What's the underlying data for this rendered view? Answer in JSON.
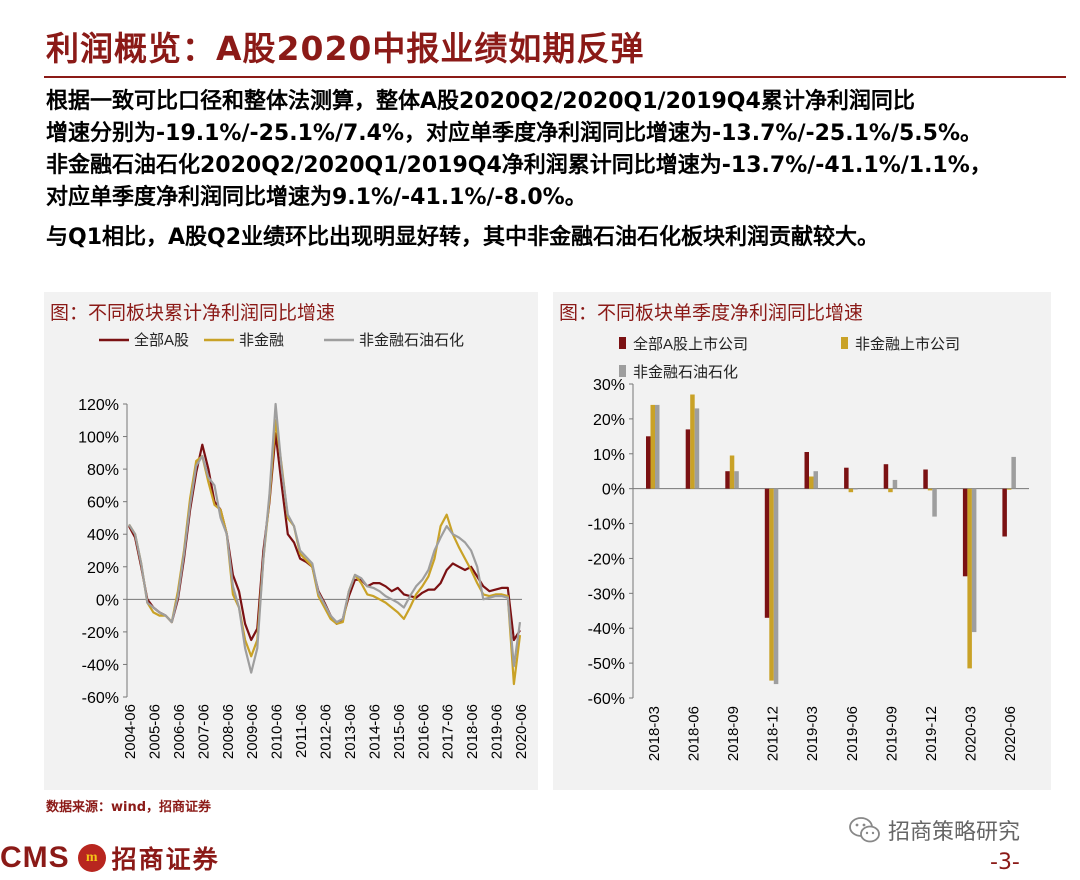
{
  "title": "利润概览：A股2020中报业绩如期反弹",
  "summary": [
    "根据一致可比口径和整体法测算，整体A股2020Q2/2020Q1/2019Q4累计净利润同比",
    "增速分别为-19.1%/-25.1%/7.4%，对应单季度净利润同比增速为-13.7%/-25.1%/5.5%。",
    "非金融石油石化2020Q2/2020Q1/2019Q4净利润累计同比增速为-13.7%/-41.1%/1.1%，",
    "对应单季度净利润同比增速为9.1%/-41.1%/-8.0%。",
    "与Q1相比，A股Q2业绩环比出现明显好转，其中非金融石油石化板块利润贡献较大。"
  ],
  "colors": {
    "series1": "#7b1113",
    "series2": "#c9a227",
    "series3": "#9e9e9e",
    "brand": "#8b1a17"
  },
  "left_panel": {
    "title": "图：不同板块累计净利润同比增速"
  },
  "right_panel": {
    "title": "图：不同板块单季度净利润同比增速"
  },
  "chart_data": [
    {
      "type": "line",
      "title": "图：不同板块累计净利润同比增速",
      "ylim": [
        -60,
        120
      ],
      "yticks": [
        120,
        100,
        80,
        60,
        40,
        20,
        0,
        -20,
        -40,
        -60
      ],
      "ytick_labels": [
        "120%",
        "100%",
        "80%",
        "60%",
        "40%",
        "20%",
        "0%",
        "-20%",
        "-40%",
        "-60%"
      ],
      "xtick_labels": [
        "2004-06",
        "2005-06",
        "2006-06",
        "2007-06",
        "2008-06",
        "2009-06",
        "2010-06",
        "2011-06",
        "2012-06",
        "2013-06",
        "2014-06",
        "2015-06",
        "2016-06",
        "2017-06",
        "2018-06",
        "2019-06",
        "2020-06"
      ],
      "x": [
        "2004-06",
        "2004-09",
        "2004-12",
        "2005-03",
        "2005-06",
        "2005-09",
        "2005-12",
        "2006-03",
        "2006-06",
        "2006-09",
        "2006-12",
        "2007-03",
        "2007-06",
        "2007-09",
        "2007-12",
        "2008-03",
        "2008-06",
        "2008-09",
        "2008-12",
        "2009-03",
        "2009-06",
        "2009-09",
        "2009-12",
        "2010-03",
        "2010-06",
        "2010-09",
        "2010-12",
        "2011-03",
        "2011-06",
        "2011-09",
        "2011-12",
        "2012-03",
        "2012-06",
        "2012-09",
        "2012-12",
        "2013-03",
        "2013-06",
        "2013-09",
        "2013-12",
        "2014-03",
        "2014-06",
        "2014-09",
        "2014-12",
        "2015-03",
        "2015-06",
        "2015-09",
        "2015-12",
        "2016-03",
        "2016-06",
        "2016-09",
        "2016-12",
        "2017-03",
        "2017-06",
        "2017-09",
        "2017-12",
        "2018-03",
        "2018-06",
        "2018-09",
        "2018-12",
        "2019-03",
        "2019-06",
        "2019-09",
        "2019-12",
        "2020-03",
        "2020-06"
      ],
      "legend": "top",
      "series": [
        {
          "name": "全部A股",
          "values": [
            45,
            38,
            20,
            0,
            -5,
            -8,
            -10,
            -14,
            0,
            25,
            55,
            78,
            95,
            80,
            60,
            55,
            40,
            15,
            5,
            -15,
            -25,
            -18,
            30,
            60,
            102,
            70,
            40,
            35,
            25,
            23,
            20,
            5,
            -2,
            -10,
            -15,
            -12,
            2,
            12,
            12,
            8,
            10,
            10,
            8,
            5,
            7,
            3,
            2,
            1,
            4,
            6,
            6,
            10,
            18,
            22,
            20,
            18,
            20,
            14,
            8,
            5,
            6,
            7,
            7,
            -25,
            -19
          ]
        },
        {
          "name": "非金融",
          "values": [
            46,
            40,
            22,
            -2,
            -8,
            -10,
            -10,
            -14,
            5,
            30,
            62,
            85,
            88,
            72,
            58,
            55,
            40,
            3,
            -5,
            -25,
            -35,
            -25,
            25,
            62,
            110,
            82,
            50,
            45,
            28,
            24,
            20,
            2,
            -5,
            -12,
            -15,
            -14,
            5,
            15,
            10,
            3,
            2,
            0,
            -2,
            -5,
            -8,
            -12,
            -5,
            3,
            8,
            14,
            25,
            45,
            52,
            40,
            32,
            25,
            18,
            10,
            3,
            2,
            3,
            3,
            2,
            -52,
            -22
          ]
        },
        {
          "name": "非金融石油石化",
          "values": [
            46,
            40,
            22,
            -2,
            -5,
            -8,
            -10,
            -14,
            2,
            28,
            58,
            82,
            88,
            75,
            70,
            50,
            40,
            8,
            -5,
            -30,
            -45,
            -30,
            25,
            65,
            120,
            80,
            52,
            45,
            30,
            26,
            22,
            4,
            -3,
            -10,
            -14,
            -12,
            5,
            15,
            13,
            8,
            7,
            5,
            2,
            0,
            -2,
            -5,
            2,
            8,
            12,
            18,
            30,
            38,
            45,
            40,
            38,
            35,
            30,
            20,
            0,
            1,
            2,
            2,
            1,
            -41,
            -14
          ]
        }
      ]
    },
    {
      "type": "bar",
      "title": "图：不同板块单季度净利润同比增速",
      "categories": [
        "2018-03",
        "2018-06",
        "2018-09",
        "2018-12",
        "2019-03",
        "2019-06",
        "2019-09",
        "2019-12",
        "2020-03",
        "2020-06"
      ],
      "ylim": [
        -60,
        30
      ],
      "yticks": [
        30,
        20,
        10,
        0,
        -10,
        -20,
        -30,
        -40,
        -50,
        -60
      ],
      "ytick_labels": [
        "30%",
        "20%",
        "10%",
        "0%",
        "-10%",
        "-20%",
        "-30%",
        "-40%",
        "-50%",
        "-60%"
      ],
      "legend": "top",
      "series": [
        {
          "name": "全部A股上市公司",
          "values": [
            15,
            17,
            5,
            -37,
            10.5,
            6,
            7,
            5.5,
            -25.1,
            -13.7
          ]
        },
        {
          "name": "非金融上市公司",
          "values": [
            24,
            27,
            9.5,
            -55,
            3.5,
            -1,
            -1,
            -0.5,
            -51.5,
            -0.3
          ]
        },
        {
          "name": "非金融石油石化",
          "values": [
            24,
            23,
            5,
            -56,
            5,
            0,
            2.5,
            -8.0,
            -41.1,
            9.1
          ]
        }
      ]
    }
  ],
  "source": "数据来源：wind，招商证券",
  "footer": {
    "logo_text": "CMS",
    "emblem_text": "m",
    "logo_cn": "招商证券",
    "wechat_name": "招商策略研究",
    "page": "-3-"
  }
}
